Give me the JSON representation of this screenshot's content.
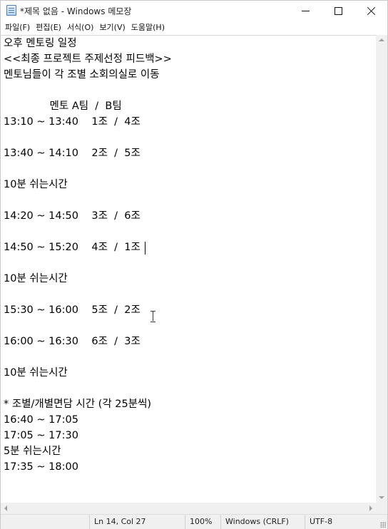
{
  "window": {
    "title": "*제목 없음 - Windows 메모장",
    "app_icon": "notepad-icon"
  },
  "controls": {
    "minimize_icon": "minimize-icon",
    "maximize_icon": "maximize-icon",
    "close_icon": "close-icon"
  },
  "menu": [
    {
      "label": "파일(F)"
    },
    {
      "label": "편집(E)"
    },
    {
      "label": "서식(O)"
    },
    {
      "label": "보기(V)"
    },
    {
      "label": "도움말(H)"
    }
  ],
  "editor": {
    "lines": [
      "오후 멘토링 일정",
      "<<최종 프로젝트 주제선정 피드백>>",
      "멘토님들이 각 조별 소회의실로 이동",
      "",
      "              멘토 A팀  /  B팀",
      "13:10 ~ 13:40    1조  /  4조",
      "",
      "13:40 ~ 14:10    2조  /  5조",
      "",
      "10분 쉬는시간",
      "",
      "14:20 ~ 14:50    3조  /  6조",
      "",
      "14:50 ~ 15:20    4조  /  1조",
      "",
      "10분 쉬는시간",
      "",
      "15:30 ~ 16:00    5조  /  2조",
      "",
      "16:00 ~ 16:30    6조  /  3조",
      "",
      "10분 쉬는시간",
      "",
      "* 조별/개별면담 시간 (각 25분씩)",
      "16:40 ~ 17:05",
      "17:05 ~ 17:30",
      "5분 쉬는시간",
      "17:35 ~ 18:00"
    ]
  },
  "status": {
    "position": "Ln 14, Col 27",
    "zoom": "100%",
    "line_ending": "Windows (CRLF)",
    "encoding": "UTF-8"
  },
  "colors": {
    "background": "#ffffff",
    "chrome": "#f0f0f0",
    "text": "#000000"
  }
}
